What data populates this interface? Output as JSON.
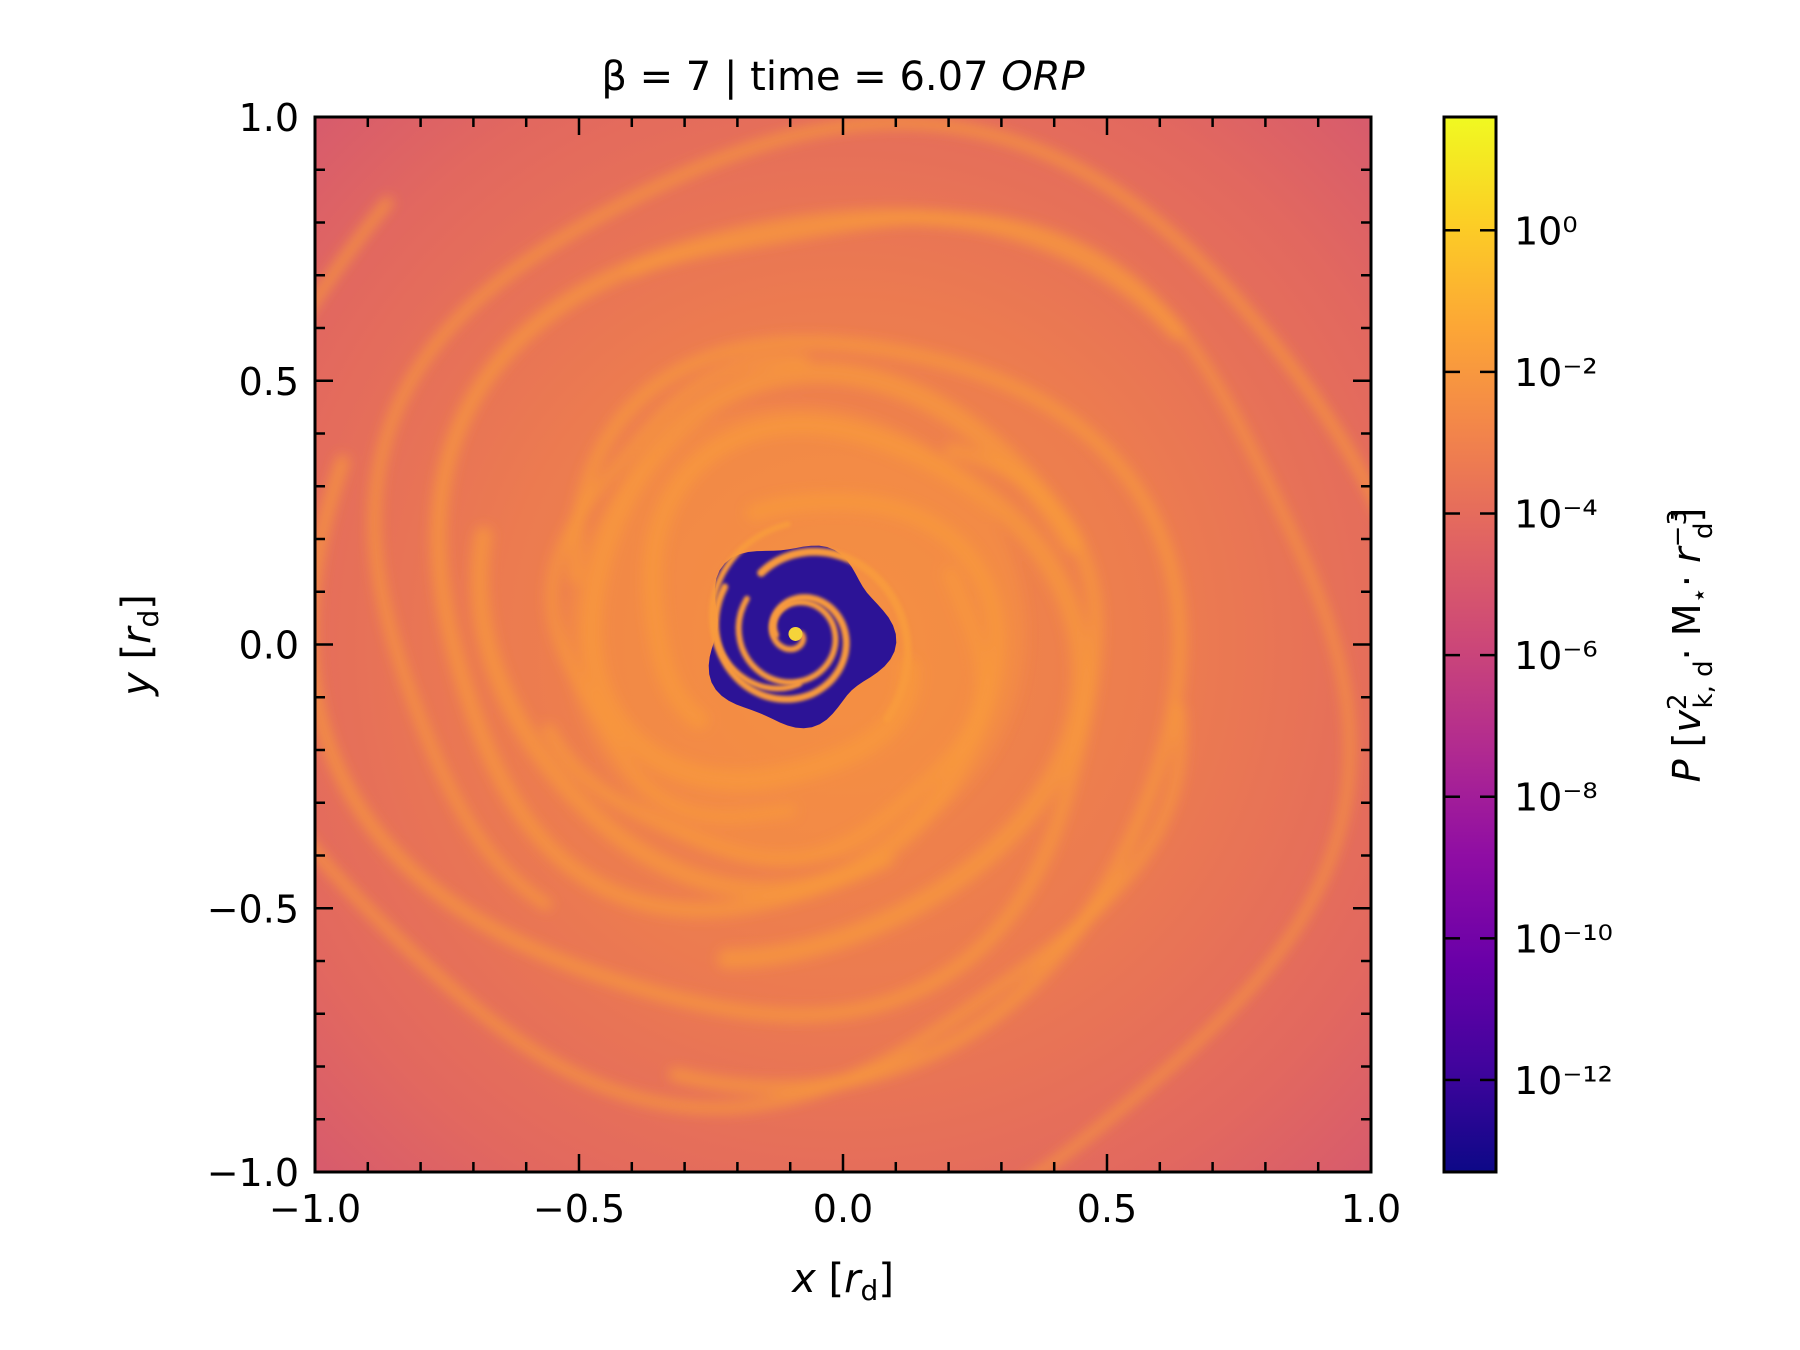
{
  "chart_data": {
    "type": "heatmap",
    "title_prefix": "β = 7 | time = 6.07 ",
    "title_italic": "ORP",
    "xlabel_var": "x",
    "xlabel_unit": "r",
    "xlabel_unit_sub": "d",
    "ylabel_var": "y",
    "ylabel_unit": "r",
    "ylabel_unit_sub": "d",
    "xlim": [
      -1.0,
      1.0
    ],
    "ylim": [
      -1.0,
      1.0
    ],
    "xticks": [
      -1.0,
      -0.5,
      0.0,
      0.5,
      1.0
    ],
    "xtick_labels": [
      "−1.0",
      "−0.5",
      "0.0",
      "0.5",
      "1.0"
    ],
    "yticks": [
      -1.0,
      -0.5,
      0.0,
      0.5,
      1.0
    ],
    "ytick_labels": [
      "−1.0",
      "−0.5",
      "0.0",
      "0.5",
      "1.0"
    ],
    "colorbar": {
      "colormap": "plasma",
      "scale": "log",
      "range_log10": [
        -13.3,
        1.6
      ],
      "tick_exponents": [
        0,
        -2,
        -4,
        -6,
        -8,
        -10,
        -12
      ],
      "tick_labels": [
        "10⁰",
        "10⁻²",
        "10⁻⁴",
        "10⁻⁶",
        "10⁻⁸",
        "10⁻¹⁰",
        "10⁻¹²"
      ],
      "label": "P [v²k,d·M⋆·r⁻³d]"
    },
    "field": {
      "outer_value_log10": -4.3,
      "spiral_value_log10": -1.2,
      "cavity_value_log10": -13.0,
      "cavity_center": [
        -0.09,
        0.02
      ],
      "cavity_radius": 0.17
    }
  },
  "colors": {
    "outer": "#dc5e6a",
    "disk": "#ea7a52",
    "spiral": "#f89a3c",
    "cavity": "#2c1396",
    "core": "#f5d43a"
  }
}
